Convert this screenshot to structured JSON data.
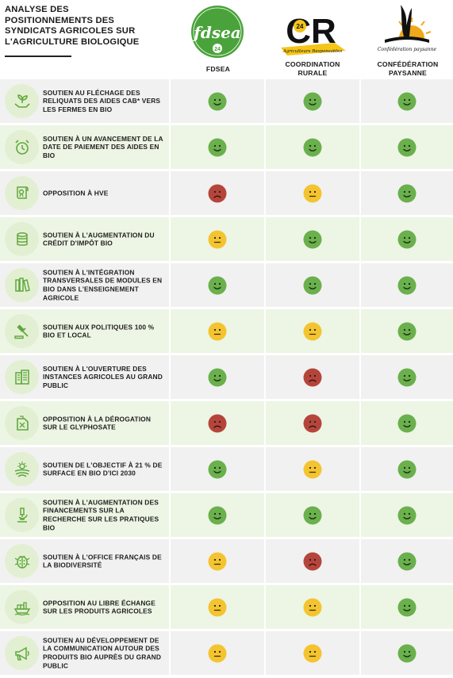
{
  "title": "ANALYSE DES\nPOSITIONNEMENTS DES\nSYNDICATS AGRICOLES SUR\nL'AGRICULTURE BIOLOGIQUE",
  "logos": {
    "fdsea_text": "fdsea",
    "fdsea_number": "24",
    "cr_text": "CR",
    "cr_number": "24",
    "cr_tagline": "Agriculteurs Responsables",
    "cp_tagline": "Confédération paysanne"
  },
  "columns": [
    {
      "label": "FDSEA"
    },
    {
      "label": "COORDINATION\nRURALE"
    },
    {
      "label": "CONFÉDÉRATION\nPAYSANNE"
    }
  ],
  "colors": {
    "positive": "#6ab04c",
    "neutral": "#f4c430",
    "negative": "#b5453b",
    "icon_green": "#5fa83c"
  },
  "rows": [
    {
      "icon": "seedling-hands-icon",
      "label": "SOUTIEN AU FLÉCHAGE DES RELIQUATS DES AIDES CAB* VERS LES FERMES EN BIO",
      "ratings": [
        "positive",
        "positive",
        "positive"
      ]
    },
    {
      "icon": "alarm-clock-icon",
      "label": "SOUTIEN À UN AVANCEMENT DE LA DATE DE PAIEMENT DES AIDES EN BIO",
      "ratings": [
        "positive",
        "positive",
        "positive"
      ]
    },
    {
      "icon": "certificate-scroll-icon",
      "label": "OPPOSITION À HVE",
      "ratings": [
        "negative",
        "neutral",
        "positive"
      ]
    },
    {
      "icon": "coin-stack-icon",
      "label": "SOUTIEN À L'AUGMENTATION DU CRÉDIT D'IMPÔT BIO",
      "ratings": [
        "neutral",
        "positive",
        "positive"
      ]
    },
    {
      "icon": "books-icon",
      "label": "SOUTIEN À L'INTÉGRATION TRANSVERSALES DE MODULES EN BIO DANS L'ENSEIGNEMENT AGRICOLE",
      "ratings": [
        "positive",
        "positive",
        "positive"
      ]
    },
    {
      "icon": "gavel-icon",
      "label": "SOUTIEN AUX POLITIQUES 100 % BIO ET LOCAL",
      "ratings": [
        "neutral",
        "neutral",
        "positive"
      ]
    },
    {
      "icon": "buildings-icon",
      "label": "SOUTIEN À L'OUVERTURE DES INSTANCES AGRICOLES AU GRAND PUBLIC",
      "ratings": [
        "positive",
        "negative",
        "positive"
      ]
    },
    {
      "icon": "jerrycan-icon",
      "label": "OPPOSITION À LA DÉROGATION SUR LE GLYPHOSATE",
      "ratings": [
        "negative",
        "negative",
        "positive"
      ]
    },
    {
      "icon": "sun-field-icon",
      "label": "SOUTIEN DE L'OBJECTIF À 21 % DE SURFACE EN BIO D'ICI 2030",
      "ratings": [
        "positive",
        "neutral",
        "positive"
      ]
    },
    {
      "icon": "microscope-icon",
      "label": "SOUTIEN À L'AUGMENTATION DES FINANCEMENTS SUR LA RECHERCHE SUR LES PRATIQUES BIO",
      "ratings": [
        "positive",
        "positive",
        "positive"
      ]
    },
    {
      "icon": "ladybug-icon",
      "label": "SOUTIEN À L'OFFICE FRANÇAIS DE LA BIODIVERSITÉ",
      "ratings": [
        "neutral",
        "negative",
        "positive"
      ]
    },
    {
      "icon": "cargo-ship-icon",
      "label": "OPPOSITION AU LIBRE ÉCHANGE SUR LES PRODUITS AGRICOLES",
      "ratings": [
        "neutral",
        "neutral",
        "positive"
      ]
    },
    {
      "icon": "megaphone-icon",
      "label": "SOUTIEN AU DÉVELOPPEMENT DE LA COMMUNICATION AUTOUR DES PRODUITS BIO AUPRÈS DU GRAND PUBLIC",
      "ratings": [
        "neutral",
        "neutral",
        "positive"
      ]
    }
  ]
}
